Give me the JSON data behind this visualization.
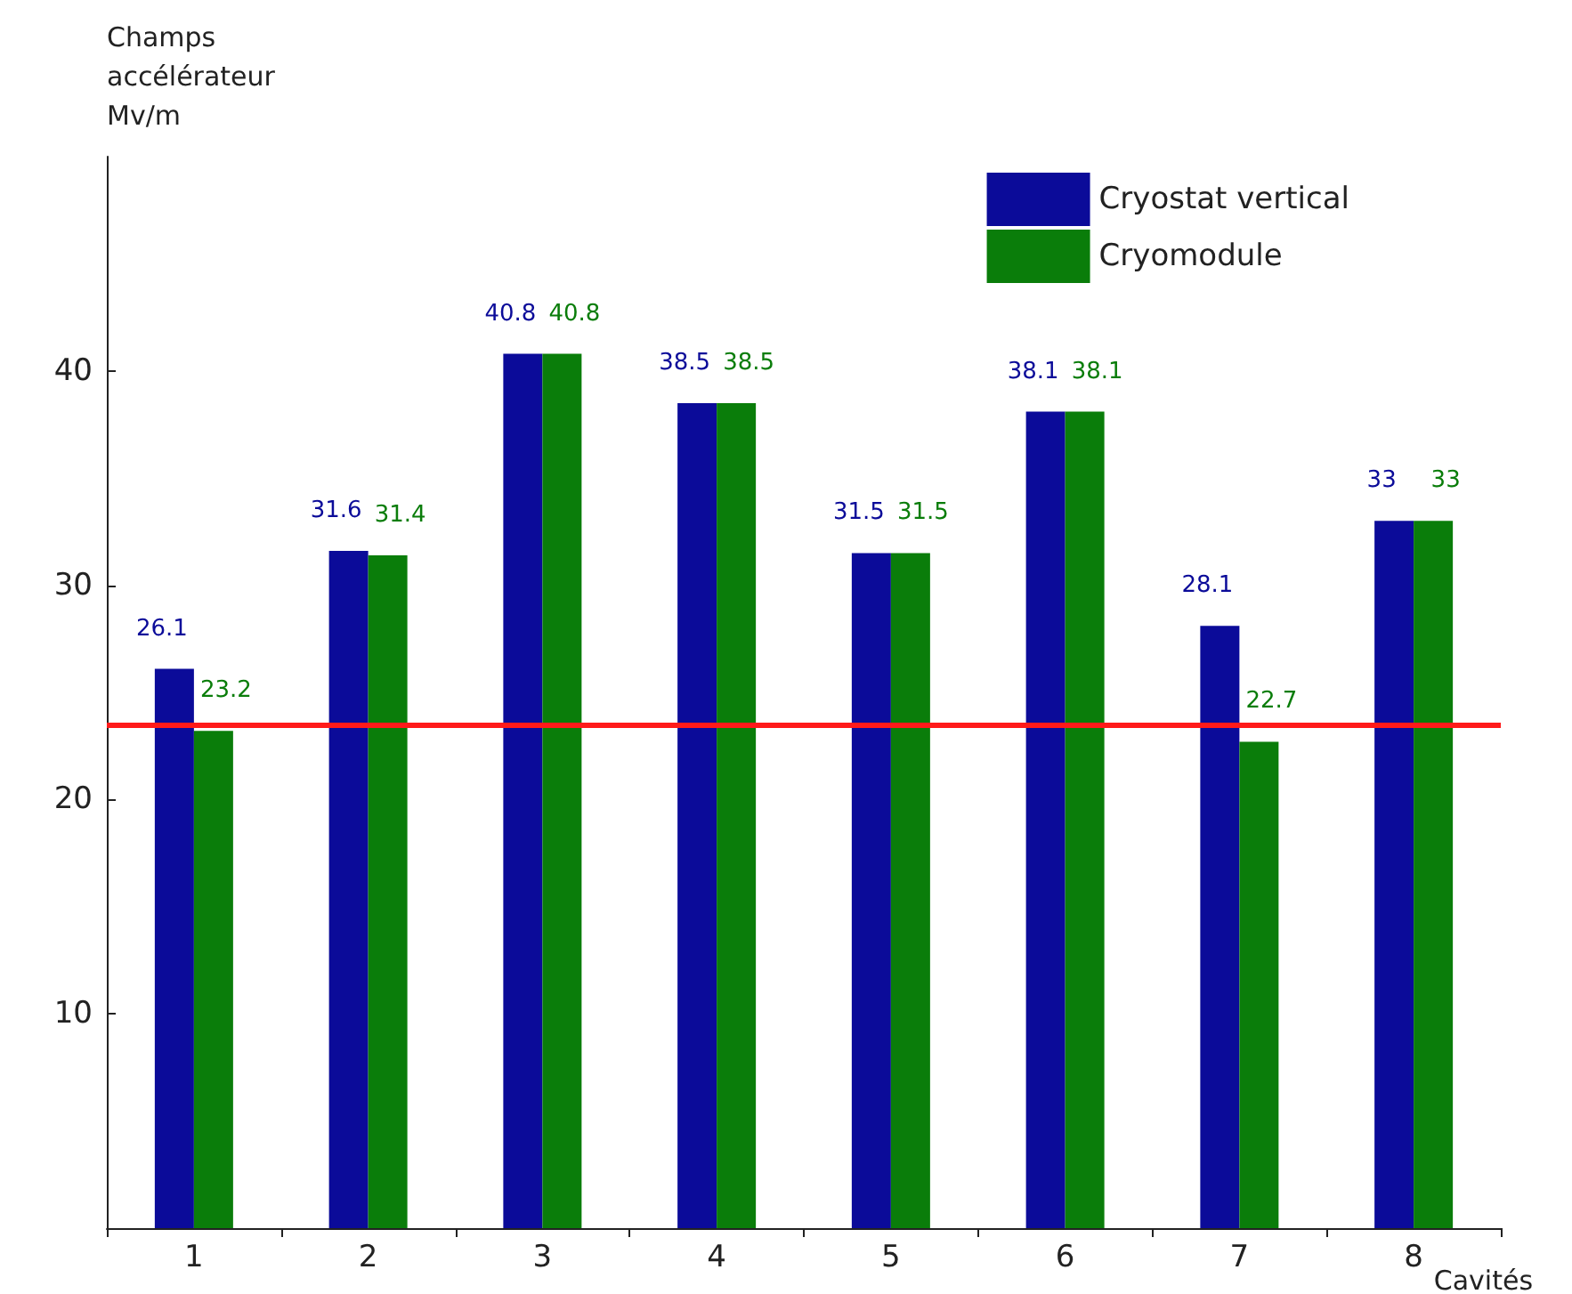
{
  "chart_data": {
    "type": "bar",
    "xlabel": "Cavités",
    "ylabel": "Champs\naccélérateur\nMv/m",
    "categories": [
      "1",
      "2",
      "3",
      "4",
      "5",
      "6",
      "7",
      "8"
    ],
    "series": [
      {
        "name": "Cryostat vertical",
        "color": "#0b0b99",
        "values": [
          26.1,
          31.6,
          40.8,
          38.5,
          31.5,
          38.1,
          28.1,
          33
        ]
      },
      {
        "name": "Cryomodule",
        "color": "#0a7d0a",
        "values": [
          23.2,
          31.4,
          40.8,
          38.5,
          31.5,
          38.1,
          22.7,
          33
        ]
      }
    ],
    "ylim": [
      0,
      50
    ],
    "yticks": [
      10,
      20,
      30,
      40
    ],
    "grid": false,
    "legend": "top right",
    "data_labels": true,
    "ref_lines": [
      {
        "axis": "y",
        "value": 23.5,
        "color": "#ff1a1a"
      }
    ]
  }
}
